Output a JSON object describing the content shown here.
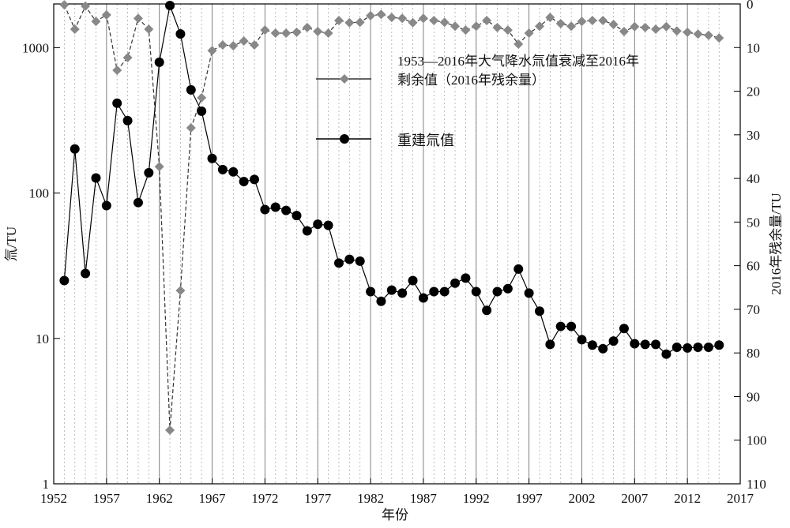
{
  "chart_data": {
    "type": "line",
    "x": [
      1953,
      1954,
      1955,
      1956,
      1957,
      1958,
      1959,
      1960,
      1961,
      1962,
      1963,
      1964,
      1965,
      1966,
      1967,
      1968,
      1969,
      1970,
      1971,
      1972,
      1973,
      1974,
      1975,
      1976,
      1977,
      1978,
      1979,
      1980,
      1981,
      1982,
      1983,
      1984,
      1985,
      1986,
      1987,
      1988,
      1989,
      1990,
      1991,
      1992,
      1993,
      1994,
      1995,
      1996,
      1997,
      1998,
      1999,
      2000,
      2001,
      2002,
      2003,
      2004,
      2005,
      2006,
      2007,
      2008,
      2009,
      2010,
      2011,
      2012,
      2013,
      2014,
      2015
    ],
    "series": [
      {
        "name": "1953—2016年大气降水氚值衰减至2016年剩余值（2016年残余量）",
        "color": "#888888",
        "line_color": "#333333",
        "dashed": true,
        "marker": "diamond",
        "axis": "y2",
        "values": [
          0.2,
          5.8,
          0.5,
          4.0,
          2.5,
          15.2,
          12.3,
          3.3,
          5.8,
          37.3,
          97.7,
          65.7,
          28.4,
          21.5,
          10.7,
          9.4,
          9.6,
          8.5,
          9.4,
          6.0,
          6.7,
          6.7,
          6.5,
          5.4,
          6.3,
          6.7,
          3.8,
          4.3,
          4.2,
          2.7,
          2.4,
          3.1,
          3.3,
          4.3,
          3.3,
          3.8,
          4.2,
          5.1,
          6.0,
          5.1,
          3.8,
          5.4,
          6.0,
          9.2,
          6.7,
          5.1,
          3.1,
          4.5,
          5.1,
          4.0,
          3.8,
          3.8,
          4.7,
          6.3,
          5.2,
          5.4,
          5.8,
          5.2,
          6.2,
          6.5,
          6.9,
          7.2,
          7.8
        ]
      },
      {
        "name": "重建氚值",
        "color": "#000000",
        "line_color": "#000000",
        "dashed": false,
        "marker": "circle",
        "values": [
          25,
          201,
          28,
          127,
          82,
          415,
          315,
          86,
          138,
          794,
          1950,
          1244,
          513,
          366,
          173,
          145,
          140,
          120,
          124,
          77,
          80,
          76,
          70,
          55,
          61,
          60,
          33,
          35,
          34,
          21,
          18,
          21.5,
          20.5,
          25,
          19,
          21,
          21,
          24,
          26,
          21,
          15.6,
          21,
          22,
          30,
          20.5,
          15.4,
          9.1,
          12.1,
          12.1,
          9.8,
          9.0,
          8.5,
          9.6,
          11.7,
          9.2,
          9.1,
          9.1,
          7.8,
          8.7,
          8.6,
          8.7,
          8.7,
          9.0
        ]
      }
    ],
    "xlabel": "年份",
    "ylabel": "氚/TU",
    "y2label": "2016年残余量/TU",
    "xlim": [
      1952,
      2017
    ],
    "xticks": [
      1952,
      1957,
      1962,
      1967,
      1972,
      1977,
      1982,
      1987,
      1992,
      1997,
      2002,
      2007,
      2012,
      2017
    ],
    "ylim": [
      1,
      2000
    ],
    "yticks": [
      1,
      10,
      100,
      1000
    ],
    "ylog": true,
    "y2lim": [
      0,
      110
    ],
    "y2ticks": [
      0,
      10,
      20,
      30,
      40,
      50,
      60,
      70,
      80,
      90,
      100,
      110
    ],
    "y2_reversed": true,
    "grid": true,
    "x_minor_grid": true,
    "legend": "top-center"
  }
}
